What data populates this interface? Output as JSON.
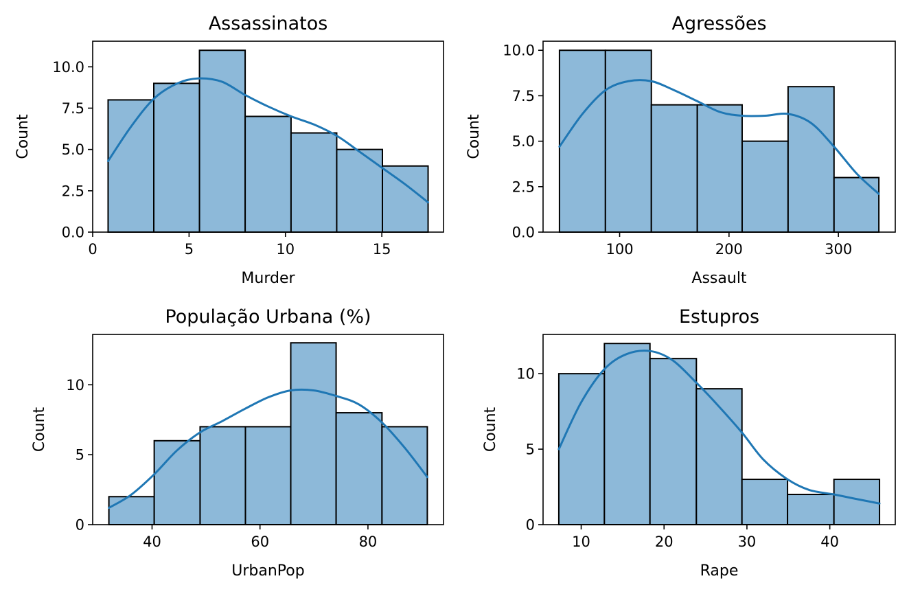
{
  "chart_data": [
    {
      "type": "bar",
      "title": "Assassinatos",
      "xlabel": "Murder",
      "ylabel": "Count",
      "bin_edges": [
        0.8,
        3.17,
        5.54,
        7.91,
        10.29,
        12.66,
        15.03,
        17.4
      ],
      "counts": [
        8,
        9,
        11,
        7,
        6,
        5,
        4
      ],
      "kde": {
        "x": [
          0.8,
          2.0,
          3.2,
          4.4,
          5.5,
          6.7,
          7.9,
          9.1,
          10.3,
          11.5,
          12.7,
          13.8,
          15.0,
          16.2,
          17.4
        ],
        "y": [
          4.3,
          6.4,
          8.1,
          9.0,
          9.3,
          9.1,
          8.3,
          7.6,
          7.0,
          6.5,
          5.8,
          4.9,
          3.9,
          2.9,
          1.8
        ]
      },
      "xlim": [
        0,
        18.2
      ],
      "ylim": [
        0,
        11.55
      ],
      "xticks": [
        0,
        5,
        10,
        15
      ],
      "xtick_labels": [
        "0",
        "5",
        "10",
        "15"
      ],
      "yticks": [
        0,
        2.5,
        5,
        7.5,
        10
      ],
      "ytick_labels": [
        "0.0",
        "2.5",
        "5.0",
        "7.5",
        "10.0"
      ]
    },
    {
      "type": "bar",
      "title": "Agressões",
      "xlabel": "Assault",
      "ylabel": "Count",
      "bin_edges": [
        45,
        87,
        129,
        171,
        212,
        254,
        296,
        337
      ],
      "counts": [
        10,
        10,
        7,
        7,
        5,
        8,
        3
      ],
      "kde": {
        "x": [
          45,
          66,
          87,
          108,
          129,
          150,
          171,
          192,
          212,
          233,
          254,
          275,
          296,
          317,
          337
        ],
        "y": [
          4.7,
          6.5,
          7.8,
          8.3,
          8.3,
          7.8,
          7.2,
          6.6,
          6.4,
          6.4,
          6.5,
          6.0,
          4.7,
          3.2,
          2.1
        ]
      },
      "xlim": [
        30,
        352
      ],
      "ylim": [
        0,
        10.5
      ],
      "xticks": [
        100,
        200,
        300
      ],
      "xtick_labels": [
        "100",
        "200",
        "300"
      ],
      "yticks": [
        0,
        2.5,
        5,
        7.5,
        10
      ],
      "ytick_labels": [
        "0.0",
        "2.5",
        "5.0",
        "7.5",
        "10.0"
      ]
    },
    {
      "type": "bar",
      "title": "População Urbana (%)",
      "xlabel": "UrbanPop",
      "ylabel": "Count",
      "bin_edges": [
        32,
        40.4,
        48.9,
        57.3,
        65.7,
        74.1,
        82.6,
        91
      ],
      "counts": [
        2,
        6,
        7,
        7,
        13,
        8,
        7
      ],
      "kde": {
        "x": [
          32,
          36,
          40.4,
          44.6,
          48.9,
          53,
          57.3,
          61.5,
          65.7,
          69.9,
          74.1,
          78.3,
          82.6,
          86.8,
          91
        ],
        "y": [
          1.2,
          2.1,
          3.6,
          5.3,
          6.6,
          7.4,
          8.3,
          9.1,
          9.6,
          9.6,
          9.2,
          8.6,
          7.3,
          5.5,
          3.4
        ]
      },
      "xlim": [
        29,
        94
      ],
      "ylim": [
        0,
        13.6
      ],
      "xticks": [
        40,
        60,
        80
      ],
      "xtick_labels": [
        "40",
        "60",
        "80"
      ],
      "yticks": [
        0,
        5,
        10
      ],
      "ytick_labels": [
        "0",
        "5",
        "10"
      ]
    },
    {
      "type": "bar",
      "title": "Estupros",
      "xlabel": "Rape",
      "ylabel": "Count",
      "bin_edges": [
        7.3,
        12.8,
        18.3,
        23.9,
        29.4,
        34.9,
        40.5,
        46
      ],
      "counts": [
        10,
        12,
        11,
        9,
        3,
        2,
        3
      ],
      "kde": {
        "x": [
          7.3,
          10,
          12.8,
          15.5,
          18.3,
          21,
          23.9,
          26.5,
          29.4,
          32,
          34.9,
          37.5,
          40.5,
          43.2,
          46
        ],
        "y": [
          5.0,
          8.1,
          10.3,
          11.3,
          11.5,
          10.9,
          9.4,
          7.9,
          6.1,
          4.3,
          3.0,
          2.3,
          2.0,
          1.7,
          1.4
        ]
      },
      "xlim": [
        5.4,
        47.9
      ],
      "ylim": [
        0,
        12.6
      ],
      "xticks": [
        10,
        20,
        30,
        40
      ],
      "xtick_labels": [
        "10",
        "20",
        "30",
        "40"
      ],
      "yticks": [
        0,
        5,
        10
      ],
      "ytick_labels": [
        "0",
        "5",
        "10"
      ]
    }
  ]
}
